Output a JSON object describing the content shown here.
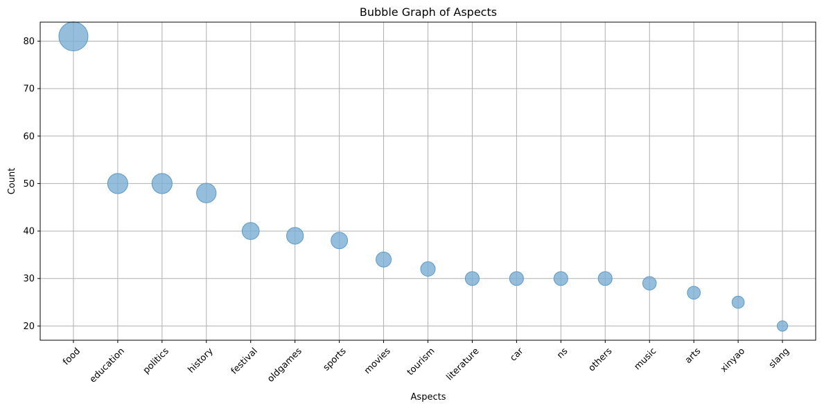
{
  "chart_data": {
    "type": "scatter",
    "title": "Bubble Graph of Aspects",
    "xlabel": "Aspects",
    "ylabel": "Count",
    "categories": [
      "food",
      "education",
      "politics",
      "history",
      "festival",
      "oldgames",
      "sports",
      "movies",
      "tourism",
      "literature",
      "car",
      "ns",
      "others",
      "music",
      "arts",
      "xinyao",
      "slang"
    ],
    "values": [
      81,
      50,
      50,
      48,
      40,
      39,
      38,
      34,
      32,
      30,
      30,
      30,
      30,
      29,
      27,
      25,
      20
    ],
    "ylim": [
      17,
      84
    ],
    "yticks": [
      20,
      30,
      40,
      50,
      60,
      70,
      80
    ],
    "grid": true,
    "bubble_color": "#7aaed3",
    "bubble_stroke": "#5b9bc8",
    "bubble_opacity": 0.8
  }
}
